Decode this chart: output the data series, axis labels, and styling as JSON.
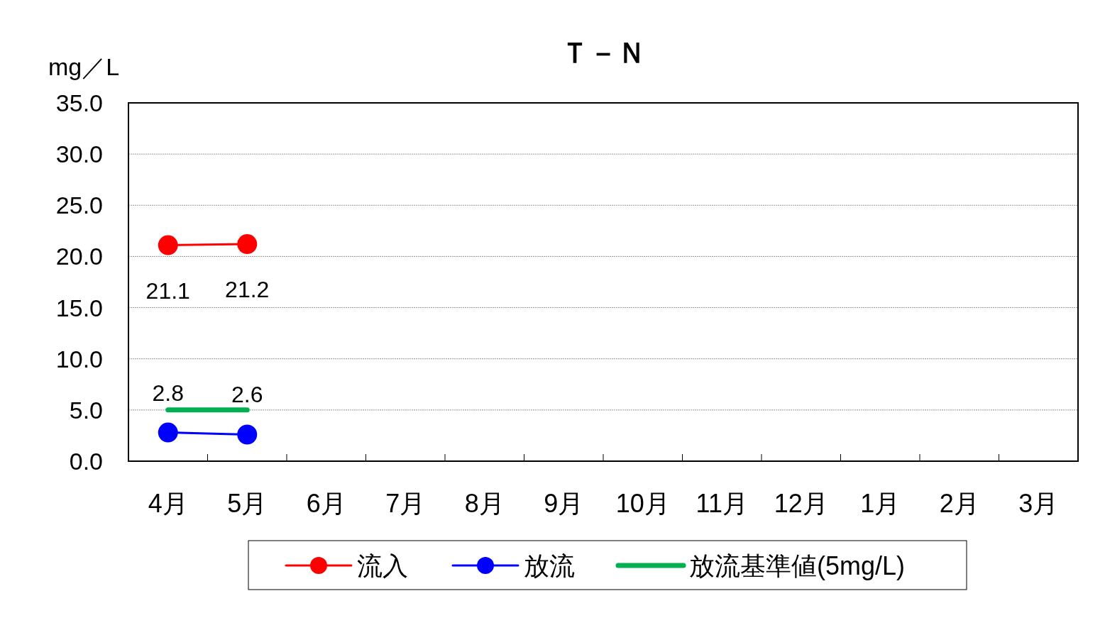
{
  "chart_data": {
    "type": "line",
    "title": "Ｔ－Ｎ",
    "ylabel": "mg／L",
    "categories": [
      "4月",
      "5月",
      "6月",
      "7月",
      "8月",
      "9月",
      "10月",
      "11月",
      "12月",
      "1月",
      "2月",
      "3月"
    ],
    "ylim": [
      0,
      35
    ],
    "yticks": [
      {
        "value": 0,
        "label": "0.0"
      },
      {
        "value": 5,
        "label": "5.0"
      },
      {
        "value": 10,
        "label": "10.0"
      },
      {
        "value": 15,
        "label": "15.0"
      },
      {
        "value": 20,
        "label": "20.0"
      },
      {
        "value": 25,
        "label": "25.0"
      },
      {
        "value": 30,
        "label": "30.0"
      },
      {
        "value": 35,
        "label": "35.0"
      }
    ],
    "grid": "y",
    "legend": "bottom",
    "line_style": "solid",
    "series": [
      {
        "name": "流入",
        "color": "#ff0000",
        "marker": "circle",
        "values": [
          21.1,
          21.2,
          null,
          null,
          null,
          null,
          null,
          null,
          null,
          null,
          null,
          null
        ],
        "value_labels": [
          "21.1",
          "21.2",
          null,
          null,
          null,
          null,
          null,
          null,
          null,
          null,
          null,
          null
        ]
      },
      {
        "name": "放流",
        "color": "#0000ff",
        "marker": "circle",
        "values": [
          2.8,
          2.6,
          null,
          null,
          null,
          null,
          null,
          null,
          null,
          null,
          null,
          null
        ],
        "value_labels": [
          "2.8",
          "2.6",
          null,
          null,
          null,
          null,
          null,
          null,
          null,
          null,
          null,
          null
        ]
      },
      {
        "name": "放流基準値(5mg/L)",
        "color": "#00b050",
        "marker": "none",
        "values": [
          5,
          5,
          null,
          null,
          null,
          null,
          null,
          null,
          null,
          null,
          null,
          null
        ]
      }
    ]
  }
}
